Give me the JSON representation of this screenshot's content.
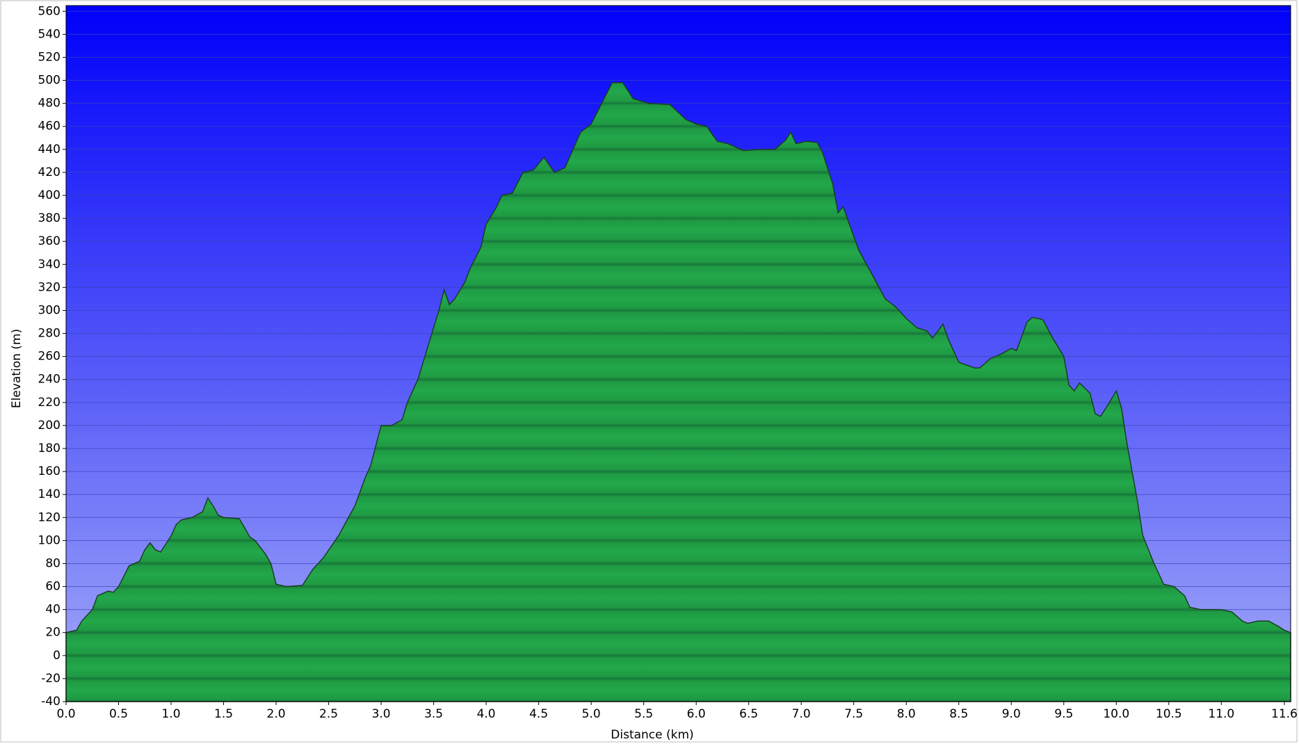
{
  "chart_data": {
    "type": "area",
    "x_label": "Distance   (km)",
    "y_label": "Elevation (m)",
    "color": "#22a84a",
    "x": [
      0.0,
      0.1,
      0.15,
      0.25,
      0.3,
      0.4,
      0.45,
      0.5,
      0.6,
      0.7,
      0.75,
      0.8,
      0.85,
      0.9,
      1.0,
      1.05,
      1.1,
      1.2,
      1.3,
      1.35,
      1.4,
      1.45,
      1.5,
      1.65,
      1.75,
      1.8,
      1.9,
      1.95,
      2.0,
      2.1,
      2.25,
      2.35,
      2.45,
      2.6,
      2.7,
      2.75,
      2.85,
      2.9,
      3.0,
      3.1,
      3.2,
      3.25,
      3.35,
      3.45,
      3.55,
      3.6,
      3.65,
      3.7,
      3.8,
      3.85,
      3.95,
      4.0,
      4.1,
      4.15,
      4.25,
      4.35,
      4.45,
      4.55,
      4.65,
      4.75,
      4.9,
      5.0,
      5.1,
      5.2,
      5.3,
      5.4,
      5.55,
      5.75,
      5.9,
      6.0,
      6.1,
      6.2,
      6.3,
      6.45,
      6.6,
      6.75,
      6.85,
      6.9,
      6.95,
      7.05,
      7.15,
      7.2,
      7.3,
      7.35,
      7.4,
      7.45,
      7.55,
      7.7,
      7.8,
      7.9,
      8.0,
      8.1,
      8.2,
      8.25,
      8.35,
      8.4,
      8.5,
      8.65,
      8.7,
      8.8,
      8.9,
      9.0,
      9.05,
      9.15,
      9.2,
      9.3,
      9.4,
      9.5,
      9.55,
      9.6,
      9.65,
      9.75,
      9.8,
      9.85,
      9.9,
      10.0,
      10.05,
      10.1,
      10.2,
      10.25,
      10.35,
      10.45,
      10.55,
      10.65,
      10.7,
      10.8,
      11.0,
      11.1,
      11.2,
      11.25,
      11.35,
      11.45,
      11.55,
      11.6,
      11.66
    ],
    "values": [
      20,
      22,
      30,
      40,
      52,
      56,
      55,
      60,
      78,
      82,
      92,
      98,
      92,
      90,
      104,
      114,
      118,
      120,
      125,
      137,
      130,
      122,
      120,
      119,
      103,
      100,
      88,
      80,
      62,
      60,
      61,
      75,
      85,
      105,
      122,
      130,
      155,
      165,
      200,
      200,
      205,
      220,
      240,
      270,
      300,
      318,
      305,
      310,
      325,
      337,
      355,
      375,
      390,
      400,
      402,
      420,
      422,
      433,
      420,
      424,
      455,
      462,
      480,
      498,
      498,
      484,
      480,
      479,
      466,
      462,
      460,
      447,
      445,
      439,
      440,
      440,
      448,
      455,
      445,
      447,
      446,
      438,
      410,
      385,
      390,
      377,
      352,
      327,
      310,
      303,
      293,
      285,
      282,
      276,
      288,
      275,
      255,
      250,
      250,
      258,
      262,
      267,
      265,
      290,
      294,
      292,
      275,
      260,
      235,
      230,
      237,
      228,
      210,
      208,
      215,
      230,
      215,
      185,
      135,
      105,
      82,
      62,
      60,
      52,
      42,
      40,
      40,
      38,
      30,
      28,
      30,
      30,
      25,
      22,
      20
    ],
    "xlim": [
      0,
      11.66
    ],
    "ylim": [
      -40,
      565
    ],
    "xticks": [
      {
        "value": 0,
        "label": "0.0"
      },
      {
        "value": 0.5,
        "label": "0.5"
      },
      {
        "value": 1,
        "label": "1.0"
      },
      {
        "value": 1.5,
        "label": "1.5"
      },
      {
        "value": 2,
        "label": "2.0"
      },
      {
        "value": 2.5,
        "label": "2.5"
      },
      {
        "value": 3,
        "label": "3.0"
      },
      {
        "value": 3.5,
        "label": "3.5"
      },
      {
        "value": 4,
        "label": "4.0"
      },
      {
        "value": 4.5,
        "label": "4.5"
      },
      {
        "value": 5,
        "label": "5.0"
      },
      {
        "value": 5.5,
        "label": "5.5"
      },
      {
        "value": 6,
        "label": "6.0"
      },
      {
        "value": 6.5,
        "label": "6.5"
      },
      {
        "value": 7,
        "label": "7.0"
      },
      {
        "value": 7.5,
        "label": "7.5"
      },
      {
        "value": 8,
        "label": "8.0"
      },
      {
        "value": 8.5,
        "label": "8.5"
      },
      {
        "value": 9,
        "label": "9.0"
      },
      {
        "value": 9.5,
        "label": "9.5"
      },
      {
        "value": 10,
        "label": "10.0"
      },
      {
        "value": 10.5,
        "label": "10.5"
      },
      {
        "value": 11,
        "label": "11.0"
      },
      {
        "value": 11.6,
        "label": "11.6"
      }
    ],
    "yticks": [
      -40,
      -20,
      0,
      20,
      40,
      60,
      80,
      100,
      120,
      140,
      160,
      180,
      200,
      220,
      240,
      260,
      280,
      300,
      320,
      340,
      360,
      380,
      400,
      420,
      440,
      460,
      480,
      500,
      520,
      540,
      560
    ],
    "grid": true
  }
}
